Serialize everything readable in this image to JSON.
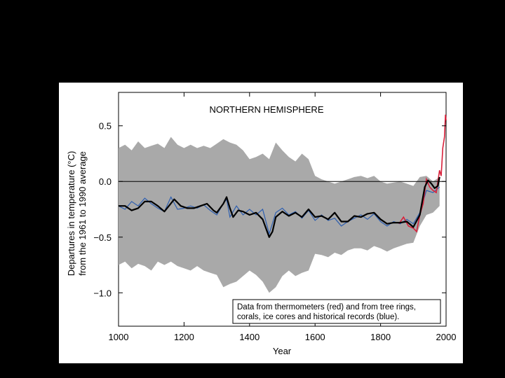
{
  "chart_data": {
    "type": "line",
    "title": "NORTHERN HEMISPHERE",
    "xlabel": "Year",
    "ylabel_line1": "Departures in temperature (°C)",
    "ylabel_line2": "from the 1961 to 1990 average",
    "xlim": [
      1000,
      2000
    ],
    "ylim": [
      -1.3,
      0.8
    ],
    "x_ticks": [
      1000,
      1200,
      1400,
      1600,
      1800,
      2000
    ],
    "x_tick_labels": [
      "1000",
      "1200",
      "1400",
      "1600",
      "1800",
      "2000"
    ],
    "y_ticks": [
      0.5,
      0.0,
      -0.5,
      -1.0
    ],
    "y_tick_labels": [
      "0.5",
      "0.0",
      "−0.5",
      "−1.0"
    ],
    "legend_text_line1": "Data from thermometers (red) and from tree rings,",
    "legend_text_line2": "corals, ice cores and historical records (blue).",
    "legend_placement": "bottom-right",
    "zero_line": true,
    "colors": {
      "uncertainty_band": "#a9a9a9",
      "proxy_series": "#2e5fb0",
      "instrumental_series": "#d8203a",
      "smoothed": "#000000"
    },
    "series": [
      {
        "kind": "band",
        "upper": [
          [
            1000,
            0.3
          ],
          [
            1020,
            0.33
          ],
          [
            1040,
            0.28
          ],
          [
            1060,
            0.36
          ],
          [
            1080,
            0.3
          ],
          [
            1100,
            0.32
          ],
          [
            1120,
            0.34
          ],
          [
            1140,
            0.3
          ],
          [
            1160,
            0.4
          ],
          [
            1180,
            0.33
          ],
          [
            1200,
            0.3
          ],
          [
            1220,
            0.33
          ],
          [
            1240,
            0.3
          ],
          [
            1260,
            0.32
          ],
          [
            1280,
            0.3
          ],
          [
            1300,
            0.34
          ],
          [
            1320,
            0.38
          ],
          [
            1340,
            0.35
          ],
          [
            1360,
            0.33
          ],
          [
            1380,
            0.28
          ],
          [
            1400,
            0.2
          ],
          [
            1420,
            0.22
          ],
          [
            1440,
            0.25
          ],
          [
            1460,
            0.2
          ],
          [
            1480,
            0.35
          ],
          [
            1500,
            0.28
          ],
          [
            1520,
            0.22
          ],
          [
            1540,
            0.18
          ],
          [
            1560,
            0.25
          ],
          [
            1580,
            0.2
          ],
          [
            1600,
            0.05
          ],
          [
            1620,
            0.02
          ],
          [
            1640,
            0.0
          ],
          [
            1660,
            -0.02
          ],
          [
            1680,
            0.0
          ],
          [
            1700,
            0.02
          ],
          [
            1720,
            0.04
          ],
          [
            1740,
            0.05
          ],
          [
            1760,
            0.03
          ],
          [
            1780,
            0.05
          ],
          [
            1800,
            0.0
          ],
          [
            1820,
            -0.02
          ],
          [
            1840,
            -0.01
          ],
          [
            1860,
            0.0
          ],
          [
            1880,
            -0.02
          ],
          [
            1900,
            -0.04
          ],
          [
            1920,
            0.04
          ],
          [
            1940,
            0.05
          ],
          [
            1960,
            0.0
          ],
          [
            1980,
            0.04
          ]
        ],
        "lower": [
          [
            1000,
            -0.75
          ],
          [
            1020,
            -0.72
          ],
          [
            1040,
            -0.78
          ],
          [
            1060,
            -0.74
          ],
          [
            1080,
            -0.76
          ],
          [
            1100,
            -0.8
          ],
          [
            1120,
            -0.72
          ],
          [
            1140,
            -0.75
          ],
          [
            1160,
            -0.72
          ],
          [
            1180,
            -0.76
          ],
          [
            1200,
            -0.78
          ],
          [
            1220,
            -0.8
          ],
          [
            1240,
            -0.76
          ],
          [
            1260,
            -0.8
          ],
          [
            1280,
            -0.82
          ],
          [
            1300,
            -0.84
          ],
          [
            1320,
            -0.95
          ],
          [
            1340,
            -0.92
          ],
          [
            1360,
            -0.9
          ],
          [
            1380,
            -0.85
          ],
          [
            1400,
            -0.8
          ],
          [
            1420,
            -0.84
          ],
          [
            1440,
            -0.9
          ],
          [
            1460,
            -1.0
          ],
          [
            1480,
            -0.95
          ],
          [
            1500,
            -0.85
          ],
          [
            1520,
            -0.8
          ],
          [
            1540,
            -0.85
          ],
          [
            1560,
            -0.82
          ],
          [
            1580,
            -0.8
          ],
          [
            1600,
            -0.65
          ],
          [
            1620,
            -0.66
          ],
          [
            1640,
            -0.68
          ],
          [
            1660,
            -0.64
          ],
          [
            1680,
            -0.66
          ],
          [
            1700,
            -0.62
          ],
          [
            1720,
            -0.6
          ],
          [
            1740,
            -0.6
          ],
          [
            1760,
            -0.62
          ],
          [
            1780,
            -0.58
          ],
          [
            1800,
            -0.6
          ],
          [
            1820,
            -0.63
          ],
          [
            1840,
            -0.6
          ],
          [
            1860,
            -0.58
          ],
          [
            1880,
            -0.56
          ],
          [
            1900,
            -0.55
          ],
          [
            1920,
            -0.4
          ],
          [
            1940,
            -0.3
          ],
          [
            1960,
            -0.28
          ],
          [
            1980,
            -0.22
          ]
        ]
      },
      {
        "kind": "line",
        "points": [
          [
            1000,
            -0.22
          ],
          [
            1020,
            -0.25
          ],
          [
            1040,
            -0.18
          ],
          [
            1060,
            -0.22
          ],
          [
            1080,
            -0.15
          ],
          [
            1100,
            -0.2
          ],
          [
            1120,
            -0.24
          ],
          [
            1140,
            -0.27
          ],
          [
            1160,
            -0.14
          ],
          [
            1180,
            -0.25
          ],
          [
            1200,
            -0.24
          ],
          [
            1220,
            -0.22
          ],
          [
            1240,
            -0.24
          ],
          [
            1260,
            -0.21
          ],
          [
            1280,
            -0.26
          ],
          [
            1300,
            -0.3
          ],
          [
            1320,
            -0.2
          ],
          [
            1330,
            -0.16
          ],
          [
            1340,
            -0.32
          ],
          [
            1360,
            -0.22
          ],
          [
            1380,
            -0.3
          ],
          [
            1400,
            -0.25
          ],
          [
            1420,
            -0.3
          ],
          [
            1440,
            -0.25
          ],
          [
            1460,
            -0.47
          ],
          [
            1480,
            -0.28
          ],
          [
            1500,
            -0.24
          ],
          [
            1520,
            -0.3
          ],
          [
            1540,
            -0.27
          ],
          [
            1560,
            -0.33
          ],
          [
            1580,
            -0.26
          ],
          [
            1600,
            -0.35
          ],
          [
            1620,
            -0.3
          ],
          [
            1640,
            -0.35
          ],
          [
            1660,
            -0.33
          ],
          [
            1680,
            -0.4
          ],
          [
            1700,
            -0.36
          ],
          [
            1720,
            -0.33
          ],
          [
            1740,
            -0.3
          ],
          [
            1760,
            -0.34
          ],
          [
            1780,
            -0.29
          ],
          [
            1800,
            -0.36
          ],
          [
            1820,
            -0.4
          ],
          [
            1840,
            -0.36
          ],
          [
            1860,
            -0.38
          ],
          [
            1880,
            -0.34
          ],
          [
            1900,
            -0.38
          ],
          [
            1920,
            -0.28
          ],
          [
            1940,
            -0.08
          ],
          [
            1960,
            -0.1
          ],
          [
            1980,
            -0.05
          ]
        ]
      },
      {
        "kind": "line",
        "points": [
          [
            1856,
            -0.38
          ],
          [
            1870,
            -0.32
          ],
          [
            1885,
            -0.4
          ],
          [
            1900,
            -0.42
          ],
          [
            1910,
            -0.45
          ],
          [
            1920,
            -0.3
          ],
          [
            1930,
            -0.2
          ],
          [
            1940,
            0.02
          ],
          [
            1950,
            -0.05
          ],
          [
            1960,
            -0.08
          ],
          [
            1970,
            -0.1
          ],
          [
            1980,
            0.1
          ],
          [
            1985,
            0.05
          ],
          [
            1990,
            0.3
          ],
          [
            1995,
            0.4
          ],
          [
            1998,
            0.6
          ],
          [
            2000,
            0.55
          ]
        ]
      },
      {
        "kind": "line",
        "points": [
          [
            1000,
            -0.22
          ],
          [
            1020,
            -0.22
          ],
          [
            1040,
            -0.26
          ],
          [
            1060,
            -0.24
          ],
          [
            1080,
            -0.18
          ],
          [
            1100,
            -0.18
          ],
          [
            1120,
            -0.22
          ],
          [
            1140,
            -0.27
          ],
          [
            1170,
            -0.16
          ],
          [
            1190,
            -0.22
          ],
          [
            1210,
            -0.24
          ],
          [
            1230,
            -0.24
          ],
          [
            1250,
            -0.22
          ],
          [
            1270,
            -0.2
          ],
          [
            1290,
            -0.26
          ],
          [
            1300,
            -0.28
          ],
          [
            1320,
            -0.2
          ],
          [
            1330,
            -0.14
          ],
          [
            1340,
            -0.24
          ],
          [
            1350,
            -0.32
          ],
          [
            1365,
            -0.26
          ],
          [
            1380,
            -0.27
          ],
          [
            1400,
            -0.3
          ],
          [
            1420,
            -0.28
          ],
          [
            1440,
            -0.34
          ],
          [
            1460,
            -0.5
          ],
          [
            1470,
            -0.45
          ],
          [
            1480,
            -0.32
          ],
          [
            1500,
            -0.27
          ],
          [
            1520,
            -0.31
          ],
          [
            1540,
            -0.28
          ],
          [
            1560,
            -0.32
          ],
          [
            1580,
            -0.25
          ],
          [
            1600,
            -0.32
          ],
          [
            1620,
            -0.31
          ],
          [
            1640,
            -0.34
          ],
          [
            1660,
            -0.28
          ],
          [
            1680,
            -0.36
          ],
          [
            1700,
            -0.36
          ],
          [
            1720,
            -0.31
          ],
          [
            1740,
            -0.32
          ],
          [
            1760,
            -0.29
          ],
          [
            1780,
            -0.28
          ],
          [
            1800,
            -0.34
          ],
          [
            1820,
            -0.38
          ],
          [
            1840,
            -0.37
          ],
          [
            1860,
            -0.37
          ],
          [
            1880,
            -0.36
          ],
          [
            1900,
            -0.41
          ],
          [
            1920,
            -0.3
          ],
          [
            1935,
            -0.05
          ],
          [
            1945,
            0.01
          ],
          [
            1955,
            -0.02
          ],
          [
            1965,
            -0.06
          ],
          [
            1975,
            -0.04
          ],
          [
            1980,
            0.04
          ]
        ]
      }
    ]
  }
}
